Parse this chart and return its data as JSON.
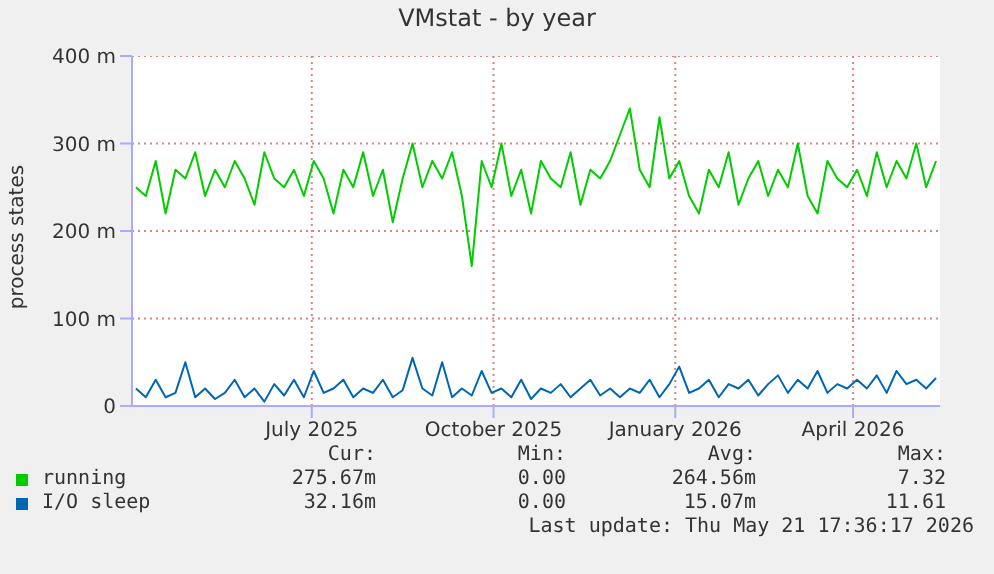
{
  "chart_data": {
    "type": "line",
    "title": "VMstat - by year",
    "ylabel": "process states",
    "x": [
      "2025-04-03",
      "2025-04-08",
      "2025-04-13",
      "2025-04-18",
      "2025-04-23",
      "2025-04-28",
      "2025-05-03",
      "2025-05-08",
      "2025-05-13",
      "2025-05-18",
      "2025-05-23",
      "2025-05-28",
      "2025-06-02",
      "2025-06-07",
      "2025-06-12",
      "2025-06-17",
      "2025-06-22",
      "2025-06-27",
      "2025-07-02",
      "2025-07-07",
      "2025-07-12",
      "2025-07-17",
      "2025-07-22",
      "2025-07-27",
      "2025-08-01",
      "2025-08-06",
      "2025-08-11",
      "2025-08-16",
      "2025-08-21",
      "2025-08-26",
      "2025-08-31",
      "2025-09-05",
      "2025-09-10",
      "2025-09-15",
      "2025-09-20",
      "2025-09-25",
      "2025-09-30",
      "2025-10-05",
      "2025-10-10",
      "2025-10-15",
      "2025-10-20",
      "2025-10-25",
      "2025-10-30",
      "2025-11-04",
      "2025-11-09",
      "2025-11-14",
      "2025-11-19",
      "2025-11-24",
      "2025-11-29",
      "2025-12-04",
      "2025-12-09",
      "2025-12-14",
      "2025-12-19",
      "2025-12-24",
      "2025-12-29",
      "2026-01-03",
      "2026-01-08",
      "2026-01-13",
      "2026-01-18",
      "2026-01-23",
      "2026-01-28",
      "2026-02-02",
      "2026-02-07",
      "2026-02-12",
      "2026-02-17",
      "2026-02-22",
      "2026-02-27",
      "2026-03-04",
      "2026-03-09",
      "2026-03-14",
      "2026-03-19",
      "2026-03-24",
      "2026-03-29",
      "2026-04-03",
      "2026-04-08",
      "2026-04-13",
      "2026-04-18",
      "2026-04-23",
      "2026-04-28",
      "2026-05-03",
      "2026-05-08",
      "2026-05-13"
    ],
    "series": [
      {
        "name": "running",
        "color": "#00cc00",
        "values": [
          250,
          240,
          280,
          220,
          270,
          260,
          290,
          240,
          270,
          250,
          280,
          260,
          230,
          290,
          260,
          250,
          270,
          240,
          280,
          260,
          220,
          270,
          250,
          290,
          240,
          270,
          210,
          260,
          300,
          250,
          280,
          260,
          290,
          240,
          160,
          280,
          250,
          300,
          240,
          270,
          220,
          280,
          260,
          250,
          290,
          230,
          270,
          260,
          280,
          310,
          340,
          270,
          250,
          330,
          260,
          280,
          240,
          220,
          270,
          250,
          290,
          230,
          260,
          280,
          240,
          270,
          250,
          300,
          240,
          220,
          280,
          260,
          250,
          270,
          240,
          290,
          250,
          280,
          260,
          300,
          250,
          280
        ]
      },
      {
        "name": "I/O sleep",
        "color": "#0066b3",
        "values": [
          20,
          10,
          30,
          10,
          15,
          50,
          10,
          20,
          8,
          15,
          30,
          10,
          20,
          5,
          25,
          12,
          30,
          10,
          40,
          15,
          20,
          30,
          10,
          20,
          15,
          30,
          10,
          18,
          55,
          20,
          12,
          50,
          10,
          20,
          12,
          40,
          15,
          20,
          10,
          30,
          8,
          20,
          15,
          25,
          10,
          20,
          30,
          12,
          20,
          10,
          20,
          15,
          30,
          10,
          25,
          45,
          15,
          20,
          30,
          10,
          25,
          20,
          30,
          12,
          25,
          35,
          15,
          30,
          20,
          40,
          15,
          25,
          20,
          30,
          20,
          35,
          15,
          40,
          25,
          30,
          20,
          32
        ]
      }
    ],
    "xlim": [
      "2025-04-01",
      "2026-05-15"
    ],
    "xticks": [
      {
        "value": "2025-07-01",
        "label": "July 2025"
      },
      {
        "value": "2025-10-01",
        "label": "October 2025"
      },
      {
        "value": "2026-01-01",
        "label": "January 2026"
      },
      {
        "value": "2026-04-01",
        "label": "April 2026"
      }
    ],
    "ylim": [
      0,
      400
    ],
    "yticks": [
      0,
      {
        "value": 100,
        "label": "100 m"
      },
      {
        "value": 200,
        "label": "200 m"
      },
      {
        "value": 300,
        "label": "300 m"
      },
      {
        "value": 400,
        "label": "400 m"
      }
    ],
    "grid": true,
    "legend": "bottom",
    "marker": "none",
    "line_style": "solid",
    "annotations": [
      "Cur:",
      "Min:",
      "Avg:",
      "Max:",
      "275.67m",
      "0.00",
      "264.56m",
      "7.32",
      "32.16m",
      "0.00",
      "15.07m",
      "11.61",
      "Last update: Thu May 21 17:36:17 2026"
    ]
  }
}
